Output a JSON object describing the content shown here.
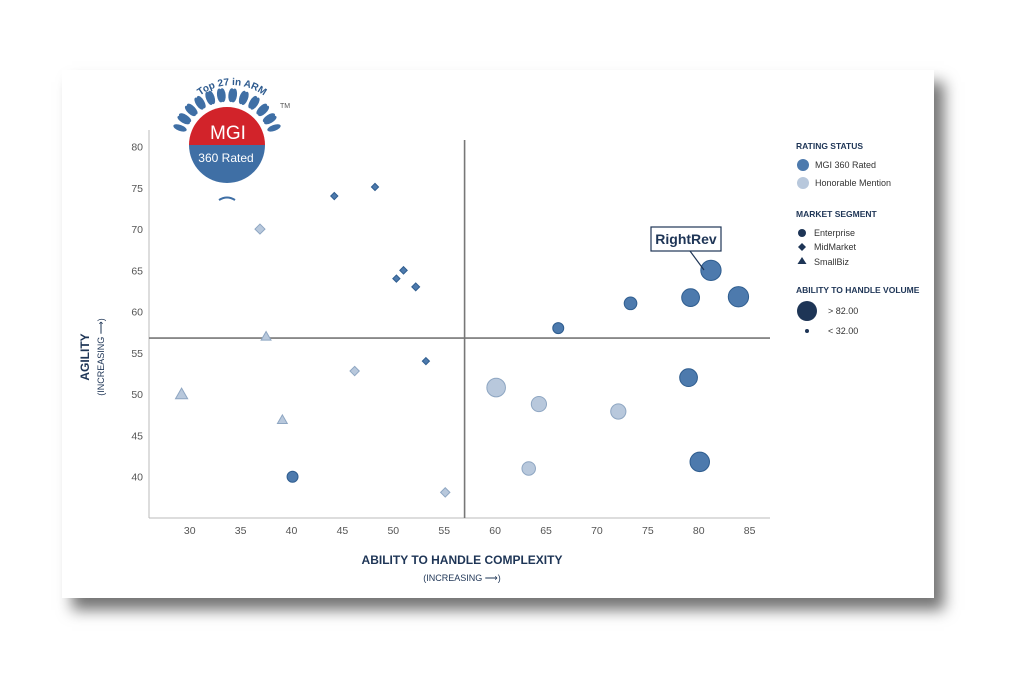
{
  "badge": {
    "arc_text": "Top 27 in ARM",
    "title": "MGI",
    "subtitle": "360 Rated",
    "tm": "TM"
  },
  "legend": {
    "rating_status": {
      "heading": "RATING STATUS",
      "items": [
        {
          "label": "MGI 360 Rated",
          "color": "#4d7aad"
        },
        {
          "label": "Honorable Mention",
          "color": "#b8c8dc"
        }
      ]
    },
    "market_segment": {
      "heading": "MARKET SEGMENT",
      "items": [
        {
          "label": "Enterprise",
          "shape": "circle"
        },
        {
          "label": "MidMarket",
          "shape": "diamond"
        },
        {
          "label": "SmallBiz",
          "shape": "triangle"
        }
      ]
    },
    "volume": {
      "heading": "ABILITY TO HANDLE VOLUME",
      "items": [
        {
          "label": "> 82.00",
          "size": "large"
        },
        {
          "label": "< 32.00",
          "size": "small"
        }
      ]
    }
  },
  "callout": {
    "label": "RightRev"
  },
  "colors": {
    "rated": "#4d7aad",
    "rated_stroke": "#2f5d8f",
    "honorable": "#b8c8dc",
    "honorable_stroke": "#8ea6c2",
    "legend_dark": "#1e3556",
    "badge_red": "#d2232a",
    "badge_blue": "#3f6fa5"
  },
  "chart_data": {
    "type": "scatter",
    "title": "",
    "xlabel": "ABILITY TO HANDLE COMPLEXITY",
    "xlabel_sub": "(INCREASING ⟶)",
    "ylabel": "AGILITY",
    "ylabel_sub": "(INCREASING ⟶)",
    "xlim": [
      26,
      87
    ],
    "ylim": [
      35,
      82
    ],
    "xticks": [
      30,
      35,
      40,
      45,
      50,
      55,
      60,
      65,
      70,
      75,
      80,
      85
    ],
    "yticks": [
      40,
      45,
      50,
      55,
      60,
      65,
      70,
      75,
      80
    ],
    "quadrant_lines": {
      "x": 57,
      "y": 56.8
    },
    "points": [
      {
        "x": 81.2,
        "y": 65,
        "segment": "Enterprise",
        "status": "MGI 360 Rated",
        "volume": 90,
        "label": "RightRev"
      },
      {
        "x": 83.9,
        "y": 61.8,
        "segment": "Enterprise",
        "status": "MGI 360 Rated",
        "volume": 90
      },
      {
        "x": 79.2,
        "y": 61.7,
        "segment": "Enterprise",
        "status": "MGI 360 Rated",
        "volume": 75
      },
      {
        "x": 73.3,
        "y": 61,
        "segment": "Enterprise",
        "status": "MGI 360 Rated",
        "volume": 45
      },
      {
        "x": 66.2,
        "y": 58,
        "segment": "Enterprise",
        "status": "MGI 360 Rated",
        "volume": 35
      },
      {
        "x": 79,
        "y": 52,
        "segment": "Enterprise",
        "status": "MGI 360 Rated",
        "volume": 75
      },
      {
        "x": 80.1,
        "y": 41.8,
        "segment": "Enterprise",
        "status": "MGI 360 Rated",
        "volume": 85
      },
      {
        "x": 40.1,
        "y": 40,
        "segment": "Enterprise",
        "status": "MGI 360 Rated",
        "volume": 35
      },
      {
        "x": 60.1,
        "y": 50.8,
        "segment": "Enterprise",
        "status": "Honorable Mention",
        "volume": 80
      },
      {
        "x": 64.3,
        "y": 48.8,
        "segment": "Enterprise",
        "status": "Honorable Mention",
        "volume": 60
      },
      {
        "x": 72.1,
        "y": 47.9,
        "segment": "Enterprise",
        "status": "Honorable Mention",
        "volume": 60
      },
      {
        "x": 63.3,
        "y": 41,
        "segment": "Enterprise",
        "status": "Honorable Mention",
        "volume": 50
      },
      {
        "x": 44.2,
        "y": 74,
        "segment": "MidMarket",
        "status": "MGI 360 Rated",
        "volume": 20
      },
      {
        "x": 48.2,
        "y": 75.1,
        "segment": "MidMarket",
        "status": "MGI 360 Rated",
        "volume": 20
      },
      {
        "x": 51,
        "y": 65,
        "segment": "MidMarket",
        "status": "MGI 360 Rated",
        "volume": 22
      },
      {
        "x": 50.3,
        "y": 64,
        "segment": "MidMarket",
        "status": "MGI 360 Rated",
        "volume": 20
      },
      {
        "x": 52.2,
        "y": 63,
        "segment": "MidMarket",
        "status": "MGI 360 Rated",
        "volume": 25
      },
      {
        "x": 53.2,
        "y": 54,
        "segment": "MidMarket",
        "status": "MGI 360 Rated",
        "volume": 20
      },
      {
        "x": 36.9,
        "y": 70,
        "segment": "MidMarket",
        "status": "Honorable Mention",
        "volume": 40
      },
      {
        "x": 46.2,
        "y": 52.8,
        "segment": "MidMarket",
        "status": "Honorable Mention",
        "volume": 35
      },
      {
        "x": 55.1,
        "y": 38.1,
        "segment": "MidMarket",
        "status": "Honorable Mention",
        "volume": 35
      },
      {
        "x": 37.5,
        "y": 57,
        "segment": "SmallBiz",
        "status": "Honorable Mention",
        "volume": 35
      },
      {
        "x": 29.2,
        "y": 50,
        "segment": "SmallBiz",
        "status": "Honorable Mention",
        "volume": 50
      },
      {
        "x": 39.1,
        "y": 46.9,
        "segment": "SmallBiz",
        "status": "Honorable Mention",
        "volume": 35
      }
    ]
  }
}
